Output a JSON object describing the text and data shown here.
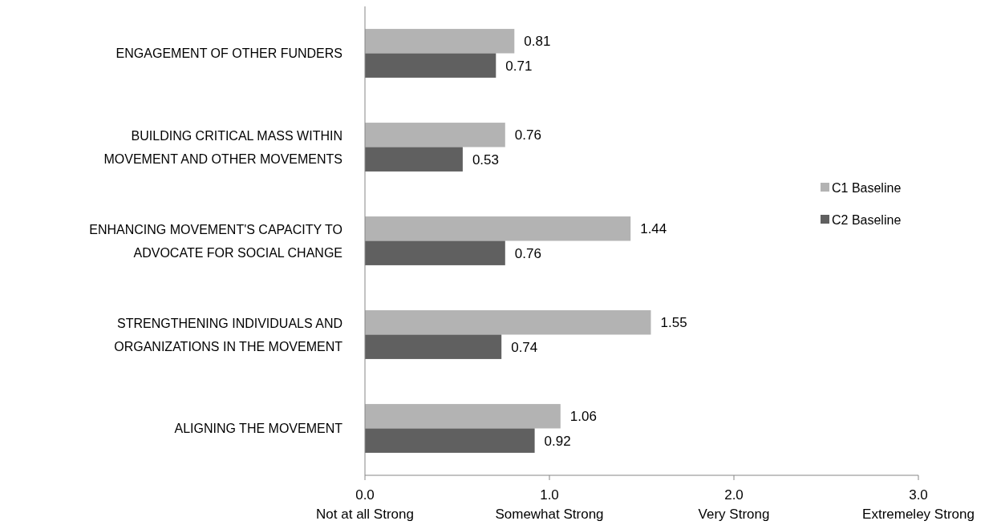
{
  "chart_data": {
    "type": "bar",
    "orientation": "horizontal",
    "categories": [
      "ENGAGEMENT OF OTHER FUNDERS",
      "BUILDING CRITICAL MASS WITHIN MOVEMENT AND OTHER MOVEMENTS",
      "ENHANCING MOVEMENT'S CAPACITY TO ADVOCATE FOR SOCIAL CHANGE",
      "STRENGTHENING INDIVIDUALS AND ORGANIZATIONS IN THE MOVEMENT",
      "ALIGNING THE MOVEMENT"
    ],
    "series": [
      {
        "name": "C1 Baseline",
        "color": "#b3b3b3",
        "values": [
          0.81,
          0.76,
          1.44,
          1.55,
          1.06
        ]
      },
      {
        "name": "C2 Baseline",
        "color": "#606060",
        "values": [
          0.71,
          0.53,
          0.76,
          0.74,
          0.92
        ]
      }
    ],
    "xlim": [
      0,
      3
    ],
    "xticks": [
      {
        "value": 0,
        "label": "0.0\nNot at all Strong"
      },
      {
        "value": 1,
        "label": "1.0\nSomewhat Strong"
      },
      {
        "value": 2,
        "label": "2.0\nVery Strong"
      },
      {
        "value": 3,
        "label": "3.0\nExtremeley Strong"
      }
    ],
    "data_labels": true,
    "legend": "right",
    "grid": false
  }
}
